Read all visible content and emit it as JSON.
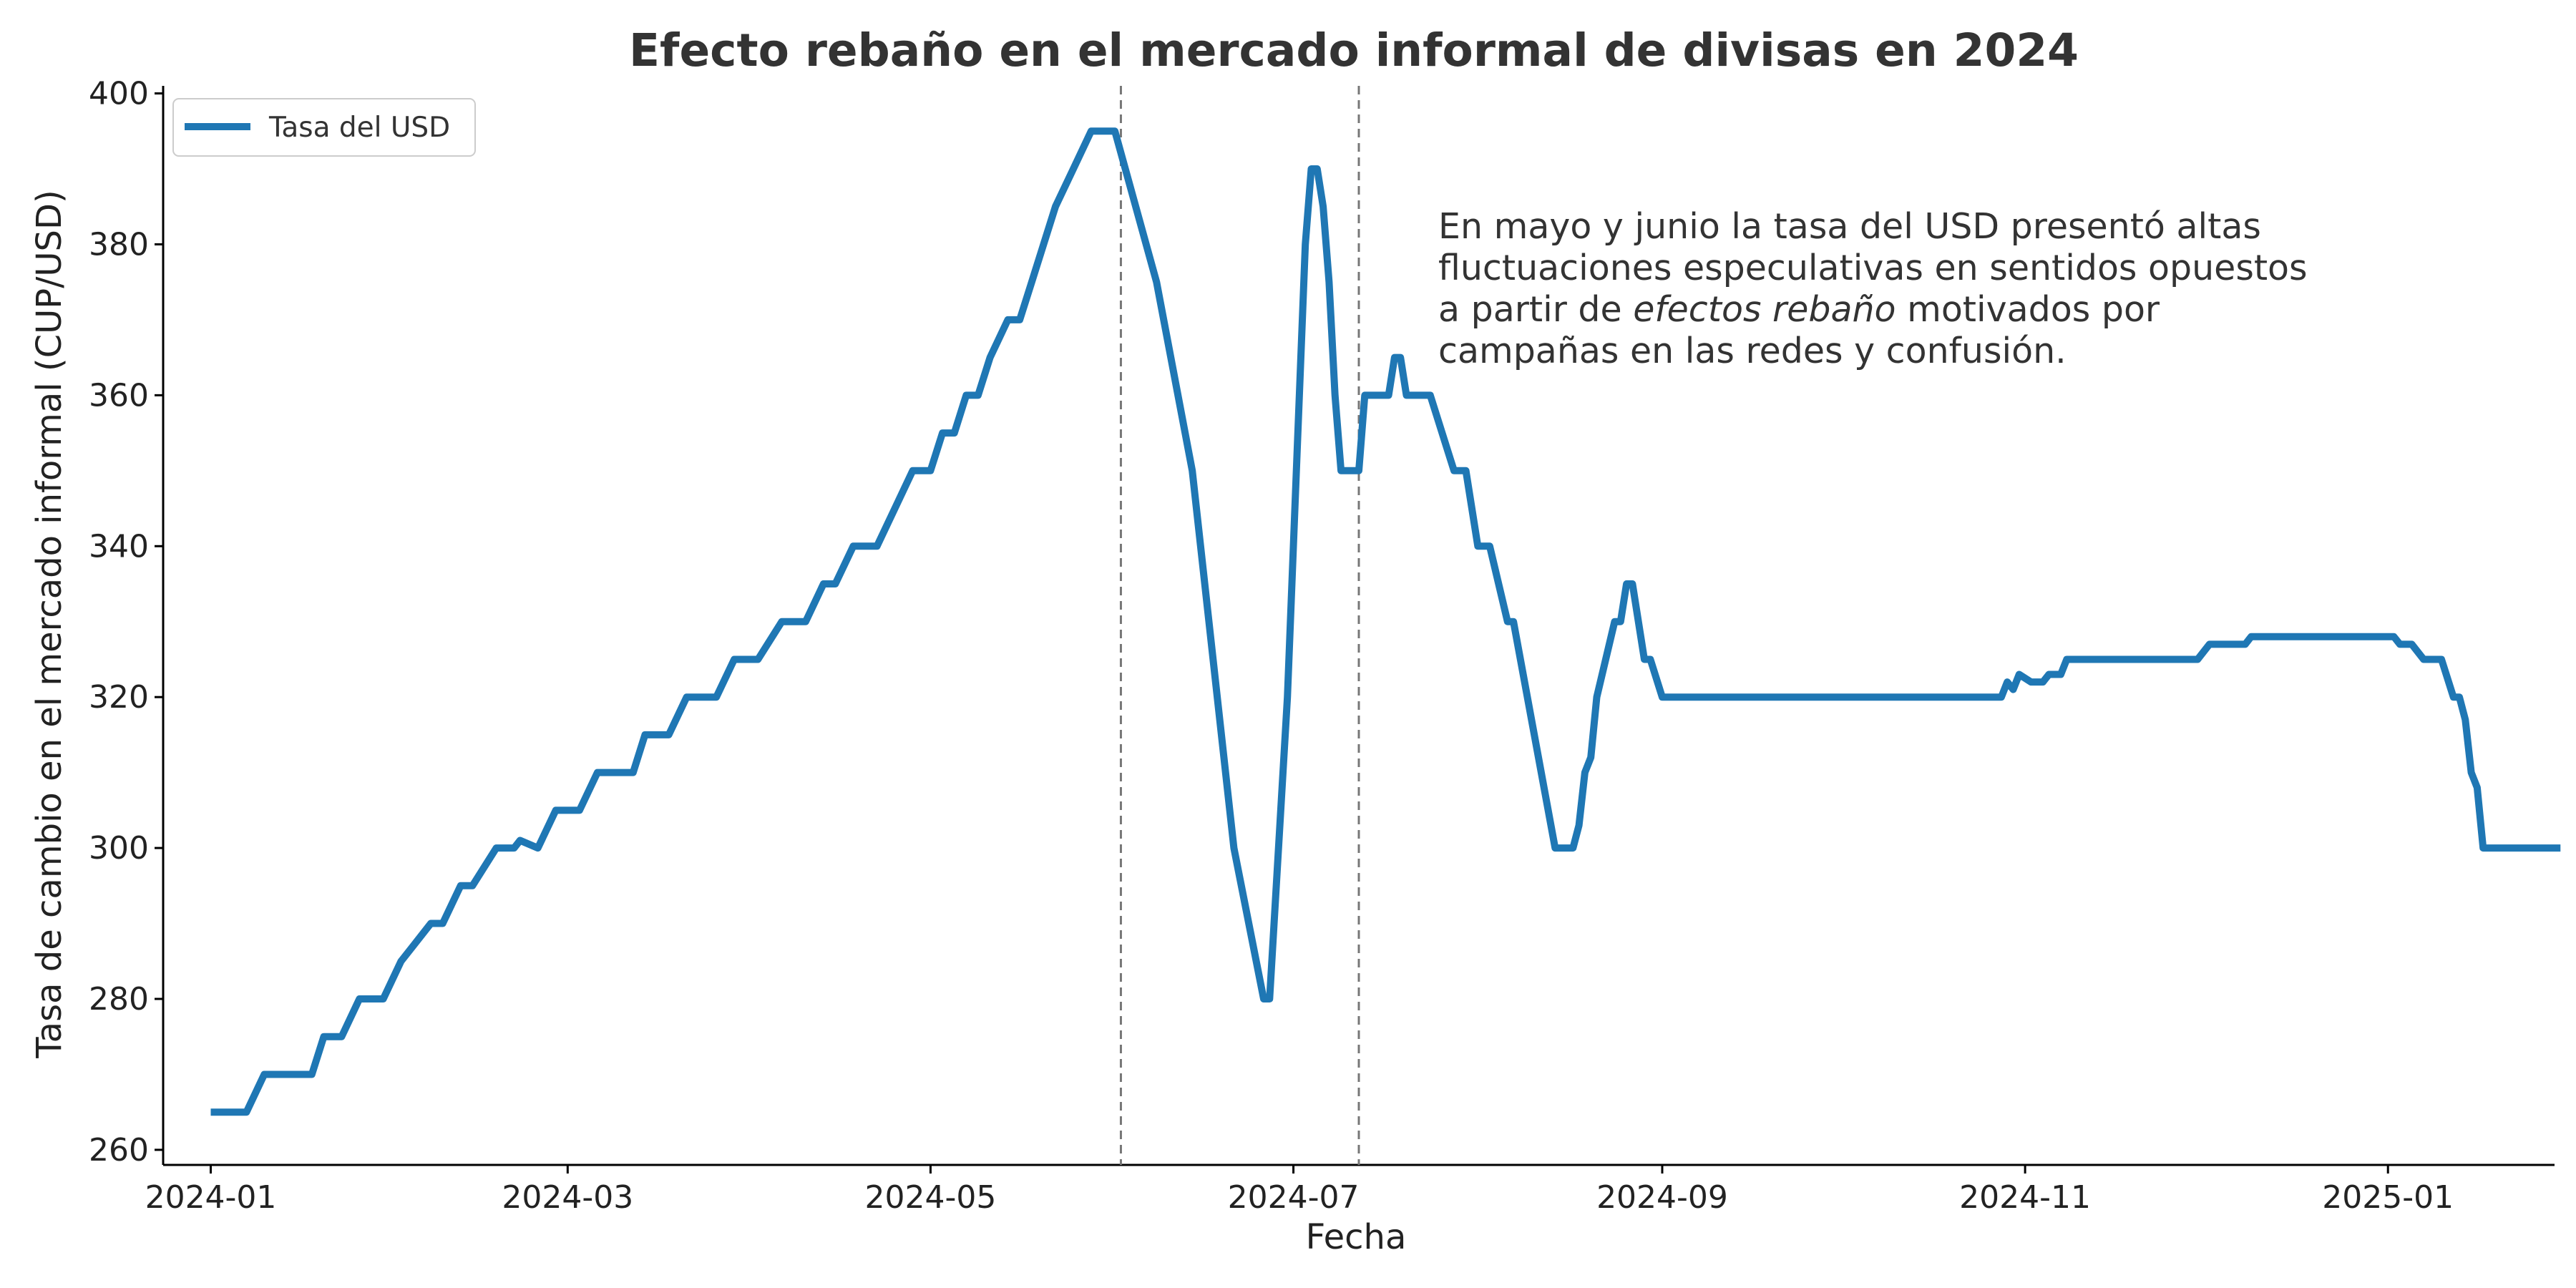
{
  "chart_data": {
    "type": "line",
    "title": "Efecto rebaño en el mercado informal de divisas en 2024",
    "xlabel": "Fecha",
    "ylabel": "Tasa de cambio en el mercado informal (CUP/USD)",
    "x_ticks": [
      "2024-01",
      "2024-03",
      "2024-05",
      "2024-07",
      "2024-09",
      "2024-11",
      "2025-01"
    ],
    "y_ticks": [
      260,
      280,
      300,
      320,
      340,
      360,
      380,
      400
    ],
    "xlim": [
      "2023-12-24",
      "2025-01-29"
    ],
    "ylim": [
      258,
      401
    ],
    "grid": false,
    "legend_position": "top-left",
    "series": [
      {
        "name": "Tasa del USD",
        "color": "#1f77b4",
        "points": [
          [
            "2024-01-01",
            265
          ],
          [
            "2024-01-07",
            265
          ],
          [
            "2024-01-10",
            270
          ],
          [
            "2024-01-18",
            270
          ],
          [
            "2024-01-20",
            275
          ],
          [
            "2024-01-23",
            275
          ],
          [
            "2024-01-26",
            280
          ],
          [
            "2024-01-30",
            280
          ],
          [
            "2024-02-02",
            285
          ],
          [
            "2024-02-04",
            287
          ],
          [
            "2024-02-07",
            290
          ],
          [
            "2024-02-09",
            290
          ],
          [
            "2024-02-12",
            295
          ],
          [
            "2024-02-14",
            295
          ],
          [
            "2024-02-18",
            300
          ],
          [
            "2024-02-21",
            300
          ],
          [
            "2024-02-22",
            301
          ],
          [
            "2024-02-25",
            300
          ],
          [
            "2024-02-28",
            305
          ],
          [
            "2024-03-03",
            305
          ],
          [
            "2024-03-06",
            310
          ],
          [
            "2024-03-12",
            310
          ],
          [
            "2024-03-14",
            315
          ],
          [
            "2024-03-18",
            315
          ],
          [
            "2024-03-21",
            320
          ],
          [
            "2024-03-26",
            320
          ],
          [
            "2024-03-29",
            325
          ],
          [
            "2024-04-02",
            325
          ],
          [
            "2024-04-06",
            330
          ],
          [
            "2024-04-10",
            330
          ],
          [
            "2024-04-13",
            335
          ],
          [
            "2024-04-15",
            335
          ],
          [
            "2024-04-18",
            340
          ],
          [
            "2024-04-22",
            340
          ],
          [
            "2024-04-25",
            345
          ],
          [
            "2024-04-28",
            350
          ],
          [
            "2024-05-01",
            350
          ],
          [
            "2024-05-03",
            355
          ],
          [
            "2024-05-05",
            355
          ],
          [
            "2024-05-07",
            360
          ],
          [
            "2024-05-09",
            360
          ],
          [
            "2024-05-11",
            365
          ],
          [
            "2024-05-14",
            370
          ],
          [
            "2024-05-16",
            370
          ],
          [
            "2024-05-18",
            375
          ],
          [
            "2024-05-20",
            380
          ],
          [
            "2024-05-22",
            385
          ],
          [
            "2024-05-25",
            390
          ],
          [
            "2024-05-28",
            395
          ],
          [
            "2024-05-31",
            395
          ],
          [
            "2024-06-01",
            395
          ],
          [
            "2024-06-08",
            375
          ],
          [
            "2024-06-14",
            350
          ],
          [
            "2024-06-21",
            300
          ],
          [
            "2024-06-26",
            280
          ],
          [
            "2024-06-27",
            280
          ],
          [
            "2024-06-30",
            320
          ],
          [
            "2024-07-03",
            380
          ],
          [
            "2024-07-04",
            390
          ],
          [
            "2024-07-05",
            390
          ],
          [
            "2024-07-06",
            385
          ],
          [
            "2024-07-07",
            375
          ],
          [
            "2024-07-08",
            360
          ],
          [
            "2024-07-09",
            350
          ],
          [
            "2024-07-12",
            350
          ],
          [
            "2024-07-13",
            360
          ],
          [
            "2024-07-17",
            360
          ],
          [
            "2024-07-18",
            365
          ],
          [
            "2024-07-19",
            365
          ],
          [
            "2024-07-20",
            360
          ],
          [
            "2024-07-24",
            360
          ],
          [
            "2024-07-26",
            355
          ],
          [
            "2024-07-28",
            350
          ],
          [
            "2024-07-30",
            350
          ],
          [
            "2024-08-01",
            340
          ],
          [
            "2024-08-03",
            340
          ],
          [
            "2024-08-06",
            330
          ],
          [
            "2024-08-07",
            330
          ],
          [
            "2024-08-14",
            300
          ],
          [
            "2024-08-17",
            300
          ],
          [
            "2024-08-18",
            303
          ],
          [
            "2024-08-19",
            310
          ],
          [
            "2024-08-20",
            312
          ],
          [
            "2024-08-21",
            320
          ],
          [
            "2024-08-24",
            330
          ],
          [
            "2024-08-25",
            330
          ],
          [
            "2024-08-26",
            335
          ],
          [
            "2024-08-27",
            335
          ],
          [
            "2024-08-29",
            325
          ],
          [
            "2024-08-30",
            325
          ],
          [
            "2024-09-01",
            320
          ],
          [
            "2024-10-28",
            320
          ],
          [
            "2024-10-29",
            322
          ],
          [
            "2024-10-30",
            321
          ],
          [
            "2024-10-31",
            323
          ],
          [
            "2024-11-02",
            322
          ],
          [
            "2024-11-04",
            322
          ],
          [
            "2024-11-05",
            323
          ],
          [
            "2024-11-07",
            323
          ],
          [
            "2024-11-08",
            325
          ],
          [
            "2024-11-30",
            325
          ],
          [
            "2024-12-02",
            327
          ],
          [
            "2024-12-08",
            327
          ],
          [
            "2024-12-09",
            328
          ],
          [
            "2025-01-02",
            328
          ],
          [
            "2025-01-03",
            327
          ],
          [
            "2025-01-05",
            327
          ],
          [
            "2025-01-07",
            325
          ],
          [
            "2025-01-10",
            325
          ],
          [
            "2025-01-12",
            320
          ],
          [
            "2025-01-13",
            320
          ],
          [
            "2025-01-14",
            317
          ],
          [
            "2025-01-15",
            310
          ],
          [
            "2025-01-16",
            308
          ],
          [
            "2025-01-17",
            300
          ],
          [
            "2025-01-30",
            300
          ]
        ]
      }
    ],
    "vlines": [
      "2024-06-02",
      "2024-07-12"
    ],
    "annotation_lines": [
      [
        {
          "text": "En mayo y junio la tasa del USD presentó altas",
          "italic": false
        }
      ],
      [
        {
          "text": "fluctuaciones especulativas en sentidos opuestos",
          "italic": false
        }
      ],
      [
        {
          "text": "a partir de ",
          "italic": false
        },
        {
          "text": "efectos rebaño",
          "italic": true
        },
        {
          "text": " motivados por",
          "italic": false
        }
      ],
      [
        {
          "text": "campañas en las redes y confusión.",
          "italic": false
        }
      ]
    ]
  }
}
